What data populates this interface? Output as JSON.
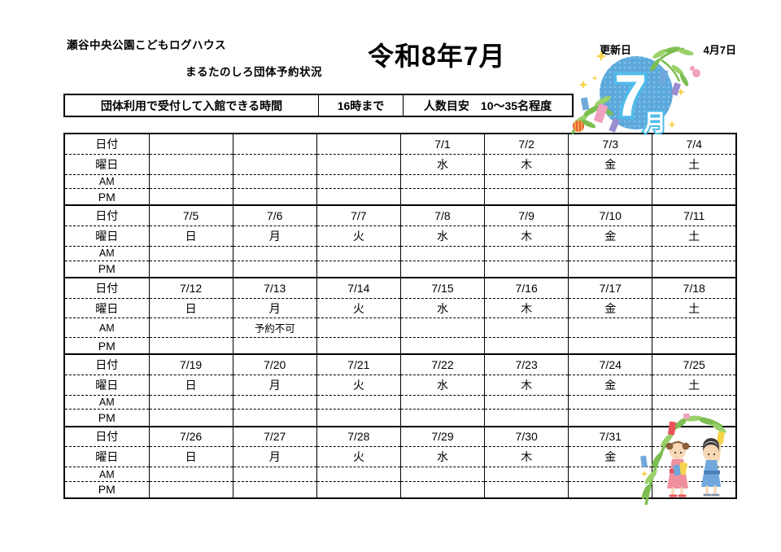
{
  "header": {
    "facility_name": "瀬谷中央公園こどもログハウス",
    "subtitle": "まるたのしろ団体予約状況",
    "title": "令和8年7月",
    "update_label": "更新日",
    "update_date": "4月7日"
  },
  "info_bar": {
    "admission_label": "団体利用で受付して入館できる時間",
    "admission_time": "16時まで",
    "capacity_label": "人数目安",
    "capacity_value": "10～35名程度"
  },
  "month_badge": {
    "month_number": "7",
    "month_suffix": "月"
  },
  "calendar": {
    "row_labels": {
      "date": "日付",
      "weekday": "曜日",
      "am": "AM",
      "pm": "PM"
    },
    "weeks": [
      {
        "days": [
          {
            "date": "",
            "weekday": "",
            "am": "",
            "pm": ""
          },
          {
            "date": "",
            "weekday": "",
            "am": "",
            "pm": ""
          },
          {
            "date": "",
            "weekday": "",
            "am": "",
            "pm": ""
          },
          {
            "date": "7/1",
            "weekday": "水",
            "am": "",
            "pm": ""
          },
          {
            "date": "7/2",
            "weekday": "木",
            "am": "",
            "pm": ""
          },
          {
            "date": "7/3",
            "weekday": "金",
            "am": "",
            "pm": ""
          },
          {
            "date": "7/4",
            "weekday": "土",
            "am": "",
            "pm": ""
          }
        ]
      },
      {
        "days": [
          {
            "date": "7/5",
            "weekday": "日",
            "am": "",
            "pm": ""
          },
          {
            "date": "7/6",
            "weekday": "月",
            "am": "",
            "pm": ""
          },
          {
            "date": "7/7",
            "weekday": "火",
            "am": "",
            "pm": ""
          },
          {
            "date": "7/8",
            "weekday": "水",
            "am": "",
            "pm": ""
          },
          {
            "date": "7/9",
            "weekday": "木",
            "am": "",
            "pm": ""
          },
          {
            "date": "7/10",
            "weekday": "金",
            "am": "",
            "pm": ""
          },
          {
            "date": "7/11",
            "weekday": "土",
            "am": "",
            "pm": ""
          }
        ]
      },
      {
        "days": [
          {
            "date": "7/12",
            "weekday": "日",
            "am": "",
            "pm": ""
          },
          {
            "date": "7/13",
            "weekday": "月",
            "am": "予約不可",
            "pm": ""
          },
          {
            "date": "7/14",
            "weekday": "火",
            "am": "",
            "pm": ""
          },
          {
            "date": "7/15",
            "weekday": "水",
            "am": "",
            "pm": ""
          },
          {
            "date": "7/16",
            "weekday": "木",
            "am": "",
            "pm": ""
          },
          {
            "date": "7/17",
            "weekday": "金",
            "am": "",
            "pm": ""
          },
          {
            "date": "7/18",
            "weekday": "土",
            "am": "",
            "pm": ""
          }
        ]
      },
      {
        "days": [
          {
            "date": "7/19",
            "weekday": "日",
            "am": "",
            "pm": ""
          },
          {
            "date": "7/20",
            "weekday": "月",
            "am": "",
            "pm": ""
          },
          {
            "date": "7/21",
            "weekday": "火",
            "am": "",
            "pm": ""
          },
          {
            "date": "7/22",
            "weekday": "水",
            "am": "",
            "pm": ""
          },
          {
            "date": "7/23",
            "weekday": "木",
            "am": "",
            "pm": ""
          },
          {
            "date": "7/24",
            "weekday": "金",
            "am": "",
            "pm": ""
          },
          {
            "date": "7/25",
            "weekday": "土",
            "am": "",
            "pm": ""
          }
        ]
      },
      {
        "days": [
          {
            "date": "7/26",
            "weekday": "日",
            "am": "",
            "pm": ""
          },
          {
            "date": "7/27",
            "weekday": "月",
            "am": "",
            "pm": ""
          },
          {
            "date": "7/28",
            "weekday": "火",
            "am": "",
            "pm": ""
          },
          {
            "date": "7/29",
            "weekday": "水",
            "am": "",
            "pm": ""
          },
          {
            "date": "7/30",
            "weekday": "木",
            "am": "",
            "pm": ""
          },
          {
            "date": "7/31",
            "weekday": "金",
            "am": "",
            "pm": ""
          },
          {
            "date": "",
            "weekday": "",
            "am": "",
            "pm": ""
          }
        ]
      }
    ]
  },
  "colors": {
    "badge_circle_blue": "#5CA8DC",
    "badge_dot_blue": "#82C2E8",
    "badge_glyph_stroke": "#4FBCEA",
    "star_yellow": "#F5D34A",
    "bamboo_green": "#7CBE52",
    "leaf_green_light": "#9AD06A",
    "tanzaku_pink": "#F2A0C0",
    "tanzaku_blue": "#6FA8DC",
    "tanzaku_purple": "#9B8ED0",
    "lantern_red": "#E8603A",
    "girl_kimono_pink": "#F08FA0",
    "boy_kimono_blue": "#70A8DC",
    "skin": "#F8D7B4",
    "hair_brown": "#8B5E3C",
    "hair_black": "#3A3A3A",
    "border_black": "#000000"
  }
}
